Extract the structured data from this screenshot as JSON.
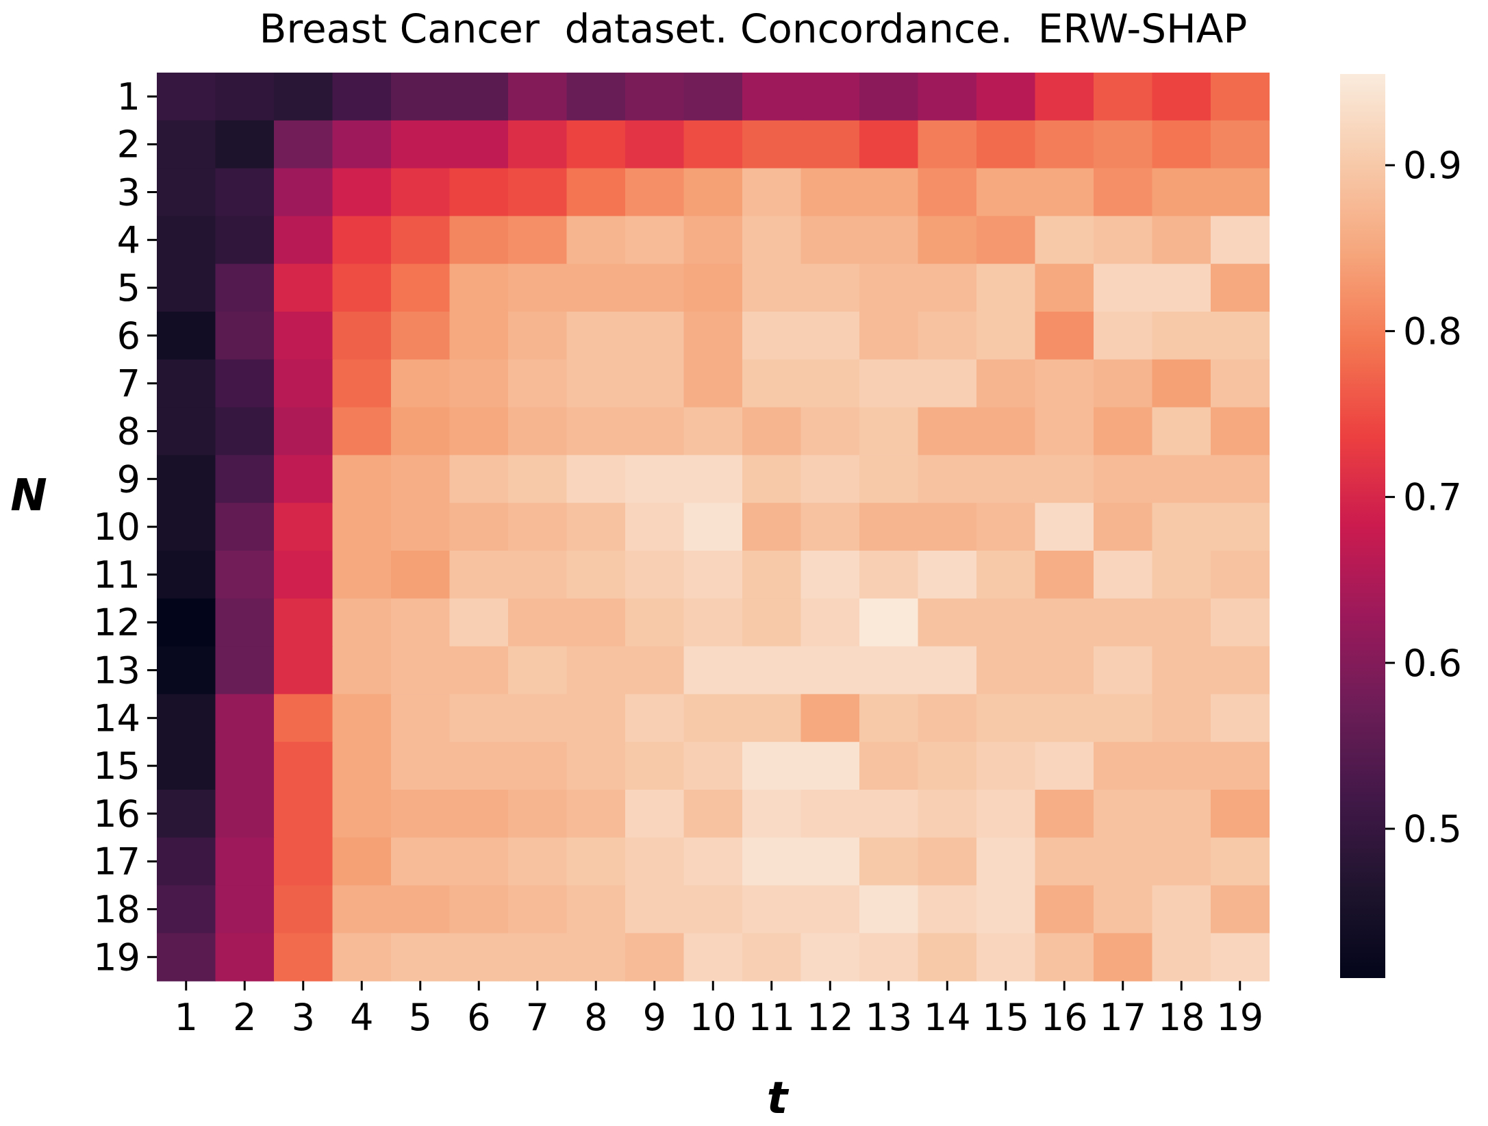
{
  "chart_data": {
    "type": "heatmap",
    "title": "Breast Cancer  dataset. Concordance.  ERW-SHAP",
    "xlabel": "t",
    "ylabel": "N",
    "x_categories": [
      "1",
      "2",
      "3",
      "4",
      "5",
      "6",
      "7",
      "8",
      "9",
      "10",
      "11",
      "12",
      "13",
      "14",
      "15",
      "16",
      "17",
      "18",
      "19"
    ],
    "y_categories": [
      "1",
      "2",
      "3",
      "4",
      "5",
      "6",
      "7",
      "8",
      "9",
      "10",
      "11",
      "12",
      "13",
      "14",
      "15",
      "16",
      "17",
      "18",
      "19"
    ],
    "colorbar": {
      "vmin": 0.41,
      "vmax": 0.955,
      "ticks": [
        0.5,
        0.6,
        0.7,
        0.8,
        0.9
      ],
      "tick_labels": [
        "0.5",
        "0.6",
        "0.7",
        "0.8",
        "0.9"
      ],
      "colormap": "rocket"
    },
    "values": [
      [
        0.5,
        0.49,
        0.48,
        0.52,
        0.55,
        0.55,
        0.6,
        0.57,
        0.59,
        0.58,
        0.63,
        0.63,
        0.61,
        0.63,
        0.66,
        0.72,
        0.76,
        0.74,
        0.78
      ],
      [
        0.48,
        0.46,
        0.58,
        0.63,
        0.67,
        0.67,
        0.71,
        0.74,
        0.72,
        0.75,
        0.77,
        0.77,
        0.74,
        0.8,
        0.78,
        0.8,
        0.81,
        0.79,
        0.81
      ],
      [
        0.48,
        0.5,
        0.63,
        0.69,
        0.72,
        0.74,
        0.75,
        0.79,
        0.82,
        0.84,
        0.88,
        0.85,
        0.85,
        0.82,
        0.85,
        0.85,
        0.82,
        0.84,
        0.84
      ],
      [
        0.47,
        0.49,
        0.66,
        0.73,
        0.76,
        0.81,
        0.82,
        0.87,
        0.88,
        0.86,
        0.89,
        0.87,
        0.87,
        0.84,
        0.83,
        0.9,
        0.89,
        0.87,
        0.92
      ],
      [
        0.47,
        0.54,
        0.7,
        0.75,
        0.79,
        0.85,
        0.86,
        0.86,
        0.86,
        0.85,
        0.89,
        0.89,
        0.88,
        0.88,
        0.9,
        0.85,
        0.92,
        0.92,
        0.85
      ],
      [
        0.44,
        0.55,
        0.67,
        0.77,
        0.81,
        0.85,
        0.87,
        0.89,
        0.89,
        0.86,
        0.91,
        0.91,
        0.88,
        0.89,
        0.9,
        0.82,
        0.91,
        0.9,
        0.9
      ],
      [
        0.47,
        0.52,
        0.66,
        0.78,
        0.85,
        0.86,
        0.88,
        0.89,
        0.89,
        0.86,
        0.9,
        0.9,
        0.91,
        0.91,
        0.87,
        0.88,
        0.87,
        0.84,
        0.89
      ],
      [
        0.47,
        0.5,
        0.65,
        0.8,
        0.84,
        0.85,
        0.87,
        0.88,
        0.88,
        0.89,
        0.87,
        0.89,
        0.9,
        0.86,
        0.86,
        0.88,
        0.85,
        0.9,
        0.85
      ],
      [
        0.45,
        0.53,
        0.67,
        0.85,
        0.86,
        0.89,
        0.9,
        0.92,
        0.93,
        0.93,
        0.9,
        0.91,
        0.9,
        0.89,
        0.89,
        0.89,
        0.88,
        0.88,
        0.88
      ],
      [
        0.45,
        0.56,
        0.7,
        0.85,
        0.86,
        0.87,
        0.88,
        0.89,
        0.92,
        0.94,
        0.87,
        0.89,
        0.87,
        0.87,
        0.88,
        0.93,
        0.87,
        0.9,
        0.9
      ],
      [
        0.44,
        0.58,
        0.69,
        0.85,
        0.84,
        0.89,
        0.89,
        0.9,
        0.91,
        0.92,
        0.9,
        0.93,
        0.91,
        0.93,
        0.9,
        0.86,
        0.92,
        0.9,
        0.89
      ],
      [
        0.41,
        0.57,
        0.71,
        0.87,
        0.88,
        0.91,
        0.88,
        0.88,
        0.9,
        0.91,
        0.9,
        0.92,
        0.95,
        0.89,
        0.89,
        0.89,
        0.89,
        0.89,
        0.91
      ],
      [
        0.42,
        0.57,
        0.71,
        0.87,
        0.88,
        0.88,
        0.9,
        0.89,
        0.89,
        0.93,
        0.93,
        0.93,
        0.93,
        0.93,
        0.89,
        0.89,
        0.91,
        0.89,
        0.89
      ],
      [
        0.45,
        0.62,
        0.78,
        0.85,
        0.88,
        0.89,
        0.89,
        0.89,
        0.91,
        0.9,
        0.9,
        0.85,
        0.9,
        0.89,
        0.9,
        0.9,
        0.9,
        0.89,
        0.91
      ],
      [
        0.45,
        0.62,
        0.76,
        0.85,
        0.88,
        0.88,
        0.88,
        0.89,
        0.9,
        0.91,
        0.94,
        0.94,
        0.89,
        0.9,
        0.91,
        0.92,
        0.88,
        0.88,
        0.88
      ],
      [
        0.48,
        0.62,
        0.76,
        0.85,
        0.86,
        0.86,
        0.87,
        0.88,
        0.92,
        0.89,
        0.93,
        0.92,
        0.92,
        0.91,
        0.92,
        0.86,
        0.89,
        0.89,
        0.85
      ],
      [
        0.51,
        0.63,
        0.76,
        0.84,
        0.88,
        0.88,
        0.89,
        0.9,
        0.91,
        0.92,
        0.94,
        0.94,
        0.9,
        0.89,
        0.93,
        0.89,
        0.89,
        0.89,
        0.9
      ],
      [
        0.53,
        0.63,
        0.77,
        0.86,
        0.86,
        0.87,
        0.88,
        0.89,
        0.91,
        0.91,
        0.92,
        0.92,
        0.94,
        0.92,
        0.93,
        0.86,
        0.89,
        0.91,
        0.87
      ],
      [
        0.55,
        0.64,
        0.78,
        0.88,
        0.89,
        0.89,
        0.89,
        0.89,
        0.88,
        0.92,
        0.91,
        0.93,
        0.92,
        0.9,
        0.92,
        0.89,
        0.85,
        0.91,
        0.92
      ]
    ]
  }
}
